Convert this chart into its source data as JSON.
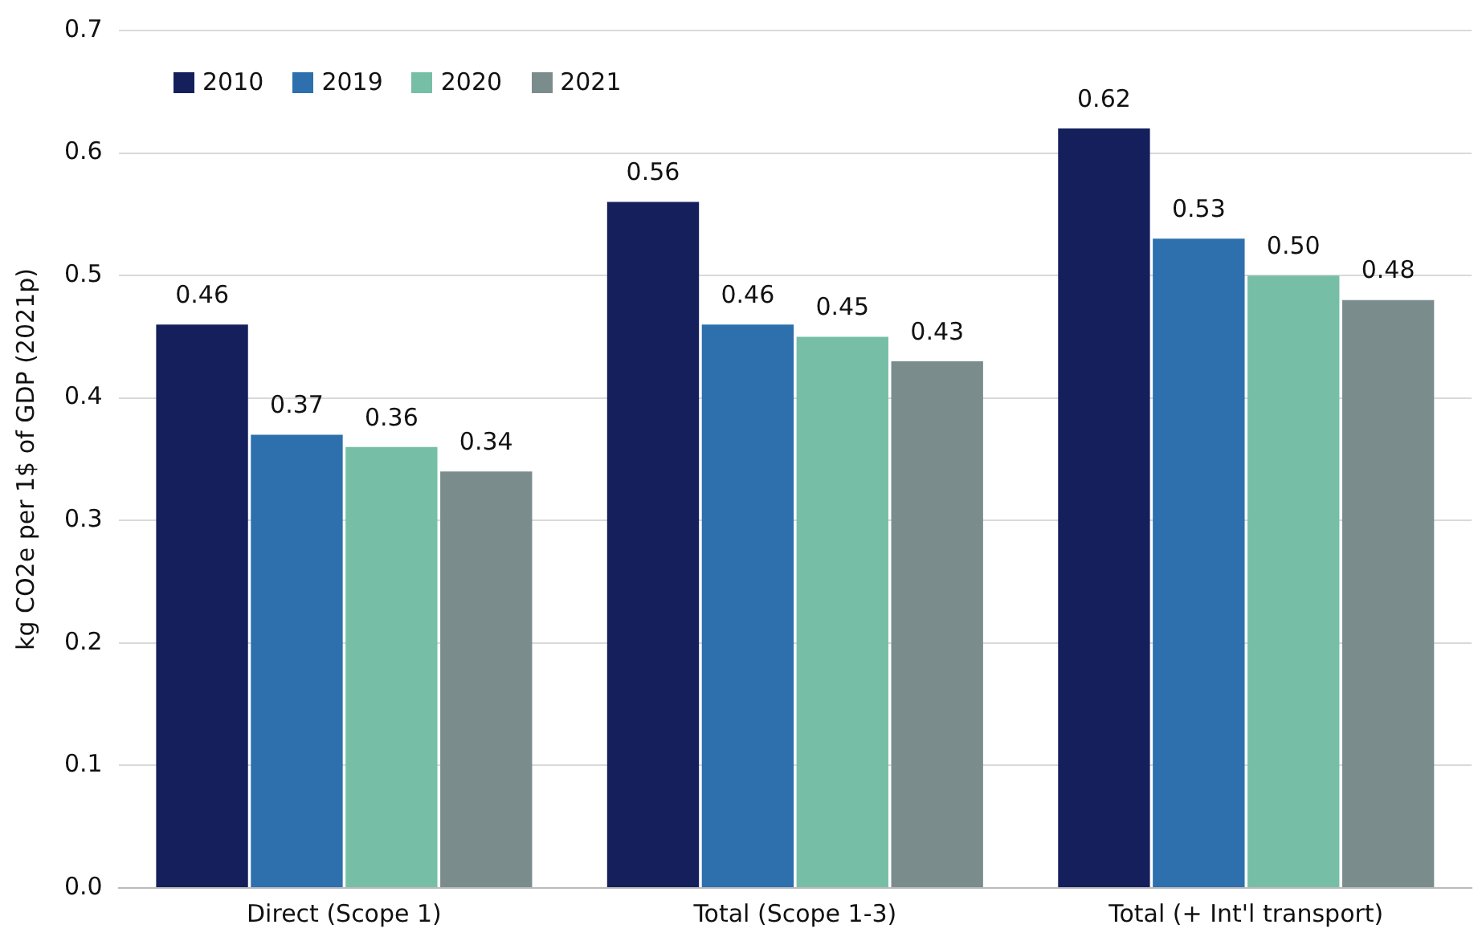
{
  "chart_data": {
    "type": "bar",
    "ylabel": "kg CO2e per 1$ of GDP (2021p)",
    "categories": [
      "Direct (Scope 1)",
      "Total (Scope 1-3)",
      "Total (+ Int'l transport)"
    ],
    "series": [
      {
        "name": "2010",
        "color": "#141f5c",
        "values": [
          0.46,
          0.56,
          0.62
        ],
        "value_labels": [
          "0.46",
          "0.56",
          "0.62"
        ]
      },
      {
        "name": "2019",
        "color": "#2e6fad",
        "values": [
          0.37,
          0.46,
          0.53
        ],
        "value_labels": [
          "0.37",
          "0.46",
          "0.53"
        ]
      },
      {
        "name": "2020",
        "color": "#76bfa6",
        "values": [
          0.36,
          0.45,
          0.5
        ],
        "value_labels": [
          "0.36",
          "0.45",
          "0.50"
        ]
      },
      {
        "name": "2021",
        "color": "#7b8c8c",
        "values": [
          0.34,
          0.43,
          0.48
        ],
        "value_labels": [
          "0.34",
          "0.43",
          "0.48"
        ]
      }
    ],
    "ylim": [
      0,
      0.7
    ],
    "yticks": [
      {
        "value": 0,
        "label": "0.0"
      },
      0.1,
      0.2,
      0.3,
      0.4,
      0.5,
      0.6,
      0.7
    ],
    "grid": "y",
    "legend": "top left"
  }
}
